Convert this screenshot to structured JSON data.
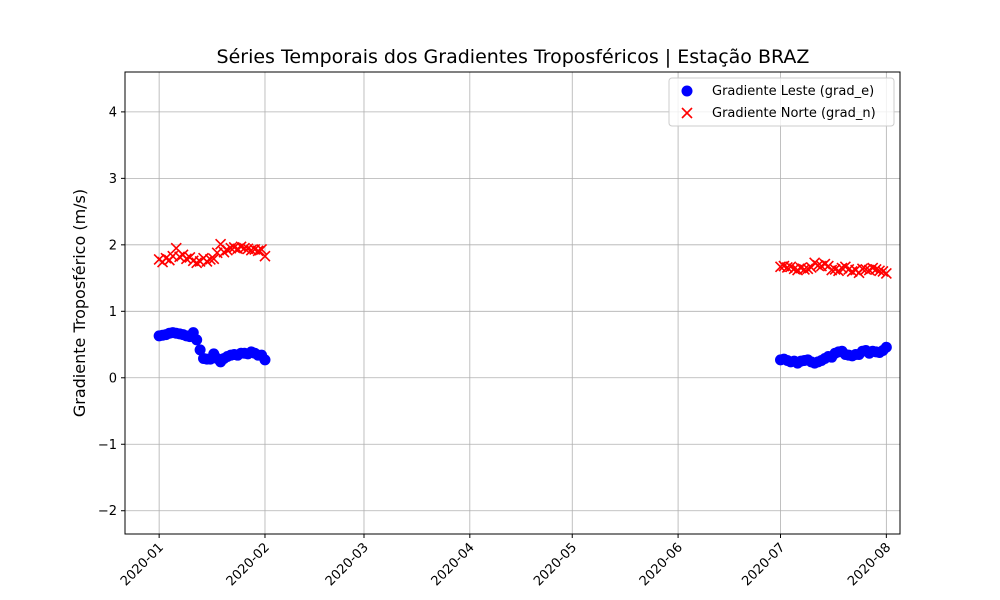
{
  "chart_data": {
    "type": "scatter",
    "title": "Séries Temporais dos Gradientes Troposféricos | Estação BRAZ",
    "xlabel": "",
    "ylabel": "Gradiente Troposférico (m/s)",
    "xlim": [
      "2019-12-22",
      "2020-08-05"
    ],
    "ylim": [
      -2.35,
      4.6
    ],
    "x_ticks": [
      "2020-01-01",
      "2020-02-01",
      "2020-03-01",
      "2020-04-01",
      "2020-05-01",
      "2020-06-01",
      "2020-07-01",
      "2020-08-01"
    ],
    "x_tick_labels": [
      "2020-01",
      "2020-02",
      "2020-03",
      "2020-04",
      "2020-05",
      "2020-06",
      "2020-07",
      "2020-08"
    ],
    "y_ticks": [
      -2,
      -1,
      0,
      1,
      2,
      3,
      4
    ],
    "y_tick_labels": [
      "−2",
      "−1",
      "0",
      "1",
      "2",
      "3",
      "4"
    ],
    "grid": true,
    "legend_position": "top-right",
    "series": [
      {
        "name": "Gradiente Leste (grad_e)",
        "marker": "circle",
        "color": "#0000ff",
        "points": [
          [
            "2020-01-01",
            0.63
          ],
          [
            "2020-01-02",
            0.64
          ],
          [
            "2020-01-03",
            0.65
          ],
          [
            "2020-01-04",
            0.67
          ],
          [
            "2020-01-05",
            0.68
          ],
          [
            "2020-01-06",
            0.67
          ],
          [
            "2020-01-07",
            0.66
          ],
          [
            "2020-01-08",
            0.65
          ],
          [
            "2020-01-09",
            0.63
          ],
          [
            "2020-01-10",
            0.62
          ],
          [
            "2020-01-11",
            0.68
          ],
          [
            "2020-01-12",
            0.57
          ],
          [
            "2020-01-13",
            0.42
          ],
          [
            "2020-01-14",
            0.29
          ],
          [
            "2020-01-15",
            0.28
          ],
          [
            "2020-01-16",
            0.28
          ],
          [
            "2020-01-17",
            0.36
          ],
          [
            "2020-01-18",
            0.29
          ],
          [
            "2020-01-19",
            0.24
          ],
          [
            "2020-01-20",
            0.29
          ],
          [
            "2020-01-21",
            0.32
          ],
          [
            "2020-01-22",
            0.34
          ],
          [
            "2020-01-23",
            0.35
          ],
          [
            "2020-01-24",
            0.34
          ],
          [
            "2020-01-25",
            0.37
          ],
          [
            "2020-01-26",
            0.37
          ],
          [
            "2020-01-27",
            0.36
          ],
          [
            "2020-01-28",
            0.39
          ],
          [
            "2020-01-29",
            0.37
          ],
          [
            "2020-01-30",
            0.34
          ],
          [
            "2020-01-31",
            0.34
          ],
          [
            "2020-02-01",
            0.27
          ],
          [
            "2020-07-01",
            0.27
          ],
          [
            "2020-07-02",
            0.28
          ],
          [
            "2020-07-03",
            0.26
          ],
          [
            "2020-07-04",
            0.24
          ],
          [
            "2020-07-05",
            0.25
          ],
          [
            "2020-07-06",
            0.22
          ],
          [
            "2020-07-07",
            0.25
          ],
          [
            "2020-07-08",
            0.26
          ],
          [
            "2020-07-09",
            0.27
          ],
          [
            "2020-07-10",
            0.24
          ],
          [
            "2020-07-11",
            0.22
          ],
          [
            "2020-07-12",
            0.24
          ],
          [
            "2020-07-13",
            0.26
          ],
          [
            "2020-07-14",
            0.29
          ],
          [
            "2020-07-15",
            0.32
          ],
          [
            "2020-07-16",
            0.31
          ],
          [
            "2020-07-17",
            0.37
          ],
          [
            "2020-07-18",
            0.39
          ],
          [
            "2020-07-19",
            0.4
          ],
          [
            "2020-07-20",
            0.35
          ],
          [
            "2020-07-21",
            0.34
          ],
          [
            "2020-07-22",
            0.33
          ],
          [
            "2020-07-23",
            0.35
          ],
          [
            "2020-07-24",
            0.35
          ],
          [
            "2020-07-25",
            0.4
          ],
          [
            "2020-07-26",
            0.41
          ],
          [
            "2020-07-27",
            0.37
          ],
          [
            "2020-07-28",
            0.4
          ],
          [
            "2020-07-29",
            0.39
          ],
          [
            "2020-07-30",
            0.38
          ],
          [
            "2020-07-31",
            0.41
          ],
          [
            "2020-08-01",
            0.46
          ]
        ]
      },
      {
        "name": "Gradiente Norte (grad_n)",
        "marker": "x",
        "color": "#ff0000",
        "points": [
          [
            "2020-01-01",
            1.78
          ],
          [
            "2020-01-02",
            1.74
          ],
          [
            "2020-01-03",
            1.8
          ],
          [
            "2020-01-04",
            1.77
          ],
          [
            "2020-01-05",
            1.83
          ],
          [
            "2020-01-06",
            1.95
          ],
          [
            "2020-01-07",
            1.82
          ],
          [
            "2020-01-08",
            1.85
          ],
          [
            "2020-01-09",
            1.79
          ],
          [
            "2020-01-10",
            1.81
          ],
          [
            "2020-01-11",
            1.76
          ],
          [
            "2020-01-12",
            1.73
          ],
          [
            "2020-01-13",
            1.75
          ],
          [
            "2020-01-14",
            1.8
          ],
          [
            "2020-01-15",
            1.75
          ],
          [
            "2020-01-16",
            1.78
          ],
          [
            "2020-01-17",
            1.79
          ],
          [
            "2020-01-18",
            1.88
          ],
          [
            "2020-01-19",
            2.01
          ],
          [
            "2020-01-20",
            1.89
          ],
          [
            "2020-01-21",
            1.92
          ],
          [
            "2020-01-22",
            1.95
          ],
          [
            "2020-01-23",
            1.96
          ],
          [
            "2020-01-24",
            1.94
          ],
          [
            "2020-01-25",
            1.97
          ],
          [
            "2020-01-26",
            1.95
          ],
          [
            "2020-01-27",
            1.94
          ],
          [
            "2020-01-28",
            1.92
          ],
          [
            "2020-01-29",
            1.93
          ],
          [
            "2020-01-30",
            1.91
          ],
          [
            "2020-01-31",
            1.93
          ],
          [
            "2020-02-01",
            1.83
          ],
          [
            "2020-07-01",
            1.67
          ],
          [
            "2020-07-02",
            1.68
          ],
          [
            "2020-07-03",
            1.66
          ],
          [
            "2020-07-04",
            1.67
          ],
          [
            "2020-07-05",
            1.64
          ],
          [
            "2020-07-06",
            1.62
          ],
          [
            "2020-07-07",
            1.65
          ],
          [
            "2020-07-08",
            1.63
          ],
          [
            "2020-07-09",
            1.64
          ],
          [
            "2020-07-10",
            1.66
          ],
          [
            "2020-07-11",
            1.73
          ],
          [
            "2020-07-12",
            1.69
          ],
          [
            "2020-07-13",
            1.68
          ],
          [
            "2020-07-14",
            1.71
          ],
          [
            "2020-07-15",
            1.68
          ],
          [
            "2020-07-16",
            1.62
          ],
          [
            "2020-07-17",
            1.63
          ],
          [
            "2020-07-18",
            1.61
          ],
          [
            "2020-07-19",
            1.65
          ],
          [
            "2020-07-20",
            1.67
          ],
          [
            "2020-07-21",
            1.63
          ],
          [
            "2020-07-22",
            1.6
          ],
          [
            "2020-07-23",
            1.62
          ],
          [
            "2020-07-24",
            1.58
          ],
          [
            "2020-07-25",
            1.64
          ],
          [
            "2020-07-26",
            1.63
          ],
          [
            "2020-07-27",
            1.62
          ],
          [
            "2020-07-28",
            1.65
          ],
          [
            "2020-07-29",
            1.63
          ],
          [
            "2020-07-30",
            1.61
          ],
          [
            "2020-07-31",
            1.6
          ],
          [
            "2020-08-01",
            1.57
          ]
        ]
      }
    ]
  }
}
